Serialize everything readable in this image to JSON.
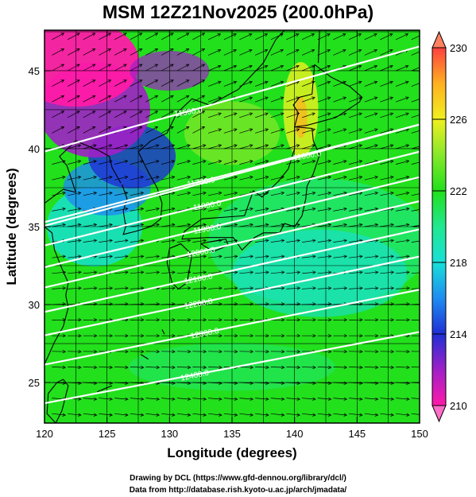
{
  "title": "MSM 12Z21Nov2025 (200.0hPa)",
  "x_axis": {
    "label": "Longitude (degrees)",
    "range": [
      120,
      150
    ],
    "ticks": [
      120,
      125,
      130,
      135,
      140,
      145,
      150
    ]
  },
  "y_axis": {
    "label": "Latitude  (degrees)",
    "range": [
      22.4,
      47.6
    ],
    "ticks": [
      25,
      30,
      35,
      40,
      45
    ]
  },
  "colorbar": {
    "range": [
      210,
      230
    ],
    "ticks": [
      210,
      214,
      218,
      222,
      226,
      230
    ],
    "tick_labels": [
      "210",
      "214",
      "218",
      "222",
      "226",
      "230"
    ],
    "stops": [
      {
        "value": 210,
        "color": "#ff1aa8"
      },
      {
        "value": 212,
        "color": "#a020c8"
      },
      {
        "value": 214,
        "color": "#1f2fd6"
      },
      {
        "value": 216,
        "color": "#1e8cf0"
      },
      {
        "value": 218,
        "color": "#18e0d8"
      },
      {
        "value": 220,
        "color": "#20e890"
      },
      {
        "value": 222,
        "color": "#22e01c"
      },
      {
        "value": 224,
        "color": "#86e82a"
      },
      {
        "value": 226,
        "color": "#f0f020"
      },
      {
        "value": 228,
        "color": "#ffb020"
      },
      {
        "value": 230,
        "color": "#ff4040"
      }
    ]
  },
  "contours": [
    {
      "label": "11500.0",
      "label_lon": 131.5,
      "label_lat": 42.4
    },
    {
      "label": "11600.0",
      "label_lon": 141.0,
      "label_lat": 39.6
    },
    {
      "label": "11700.0",
      "label_lon": 132.5,
      "label_lat": 37.9
    },
    {
      "label": "11800.0",
      "label_lon": 133.0,
      "label_lat": 36.4
    },
    {
      "label": "11900.0",
      "label_lon": 133.0,
      "label_lat": 34.9
    },
    {
      "label": "12000.0",
      "label_lon": 132.5,
      "label_lat": 33.4
    },
    {
      "label": "12100.0",
      "label_lon": 132.3,
      "label_lat": 31.7
    },
    {
      "label": "12200.0",
      "label_lon": 132.3,
      "label_lat": 30.1
    },
    {
      "label": "12300.0",
      "label_lon": 132.8,
      "label_lat": 28.2
    },
    {
      "label": "12400.0",
      "label_lon": 132.0,
      "label_lat": 25.5
    }
  ],
  "credits": {
    "line1": "Drawing by DCL (https://www.gfd-dennou.org/library/dcl/)",
    "line2": "Data from http://database.rish.kyoto-u.ac.jp/arch/jmadata/"
  }
}
